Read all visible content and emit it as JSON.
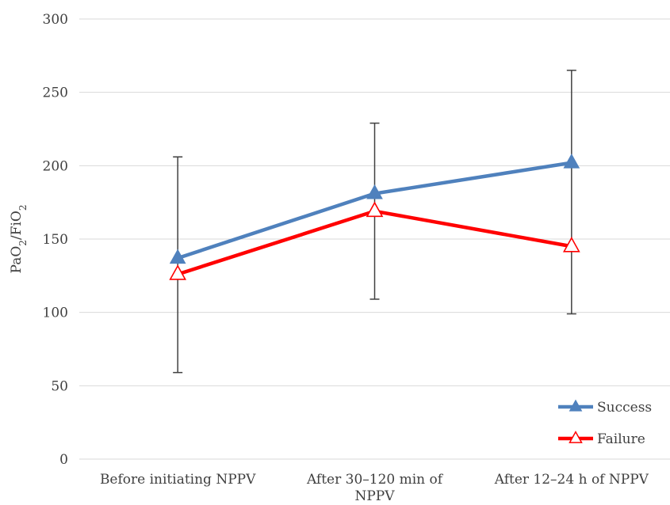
{
  "chart_data": {
    "type": "line",
    "ylabel": "PaO2/FiO2",
    "ylabel_main": "PaO",
    "ylabel_sub1": "2",
    "ylabel_mid": "/FiO",
    "ylabel_sub2": "2",
    "ylim": [
      0,
      300
    ],
    "yticks": [
      "0",
      "50",
      "100",
      "150",
      "200",
      "250",
      "300"
    ],
    "ytick_values": [
      0,
      50,
      100,
      150,
      200,
      250,
      300
    ],
    "categories": [
      [
        "Before initiating NPPV"
      ],
      [
        "After 30–120 min of",
        "NPPV"
      ],
      [
        "After 12–24 h of NPPV"
      ]
    ],
    "grid": true,
    "legend_position": "bottom-right",
    "series": [
      {
        "name": "Success",
        "color": "#4f81bd",
        "marker": "filled-triangle",
        "values": [
          137,
          181,
          202
        ]
      },
      {
        "name": "Failure",
        "color": "#ff0000",
        "marker": "open-triangle",
        "values": [
          126,
          169,
          145
        ]
      }
    ],
    "error_bars": [
      {
        "category_index": 0,
        "low": 59,
        "high": 206
      },
      {
        "category_index": 1,
        "low": 109,
        "high": 229
      },
      {
        "category_index": 2,
        "low": 99,
        "high": 265
      }
    ]
  }
}
